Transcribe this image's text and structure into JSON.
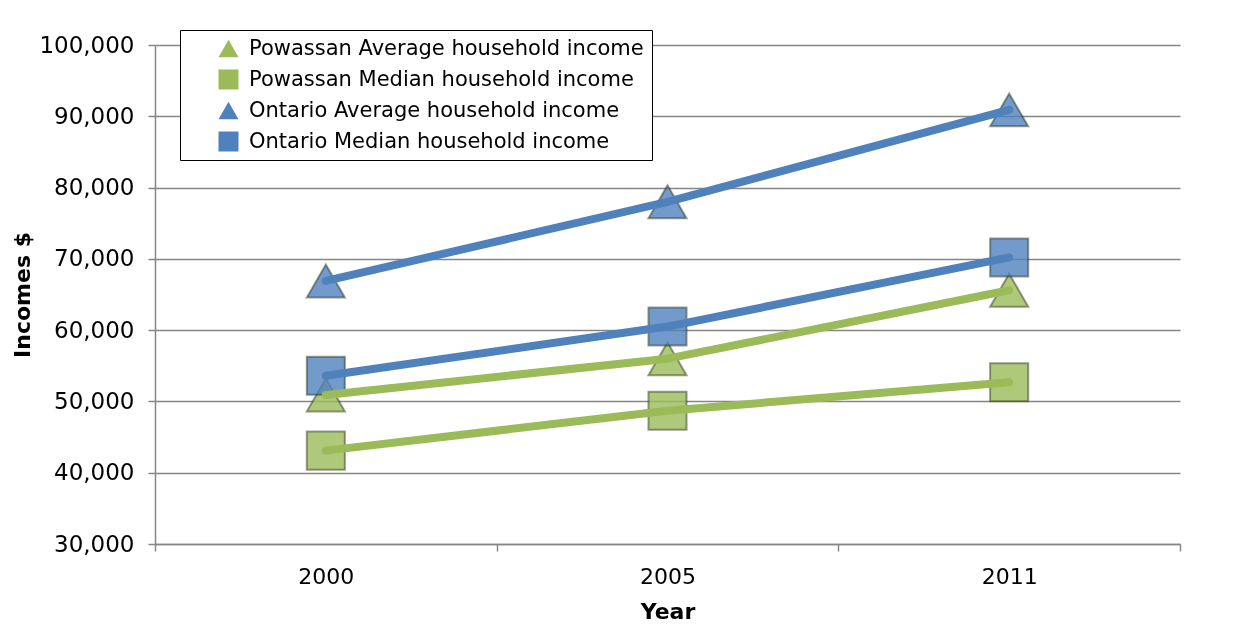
{
  "chart_data": {
    "type": "line",
    "xlabel": "Year",
    "ylabel": "Incomes $",
    "categories": [
      "2000",
      "2005",
      "2011"
    ],
    "series": [
      {
        "name": "Powassan Average household income",
        "color": "#9bbb59",
        "marker": "triangle",
        "values": [
          50900,
          56000,
          65600
        ]
      },
      {
        "name": "Powassan Median household income",
        "color": "#9bbb59",
        "marker": "square",
        "values": [
          43100,
          48700,
          52700
        ]
      },
      {
        "name": "Ontario Average household income",
        "color": "#4f81bd",
        "marker": "triangle",
        "values": [
          66900,
          78000,
          90900
        ]
      },
      {
        "name": "Ontario Median household income",
        "color": "#4f81bd",
        "marker": "square",
        "values": [
          53600,
          60500,
          70200
        ]
      }
    ],
    "ylim": [
      30000,
      100000
    ],
    "yticks": [
      {
        "value": 30000,
        "label": "30,000"
      },
      {
        "value": 40000,
        "label": "40,000"
      },
      {
        "value": 50000,
        "label": "50,000"
      },
      {
        "value": 60000,
        "label": "60,000"
      },
      {
        "value": 70000,
        "label": "70,000"
      },
      {
        "value": 80000,
        "label": "80,000"
      },
      {
        "value": 90000,
        "label": "90,000"
      },
      {
        "value": 100000,
        "label": "100,000"
      }
    ],
    "grid": "y",
    "legend": "top left",
    "line_style": "solid"
  }
}
